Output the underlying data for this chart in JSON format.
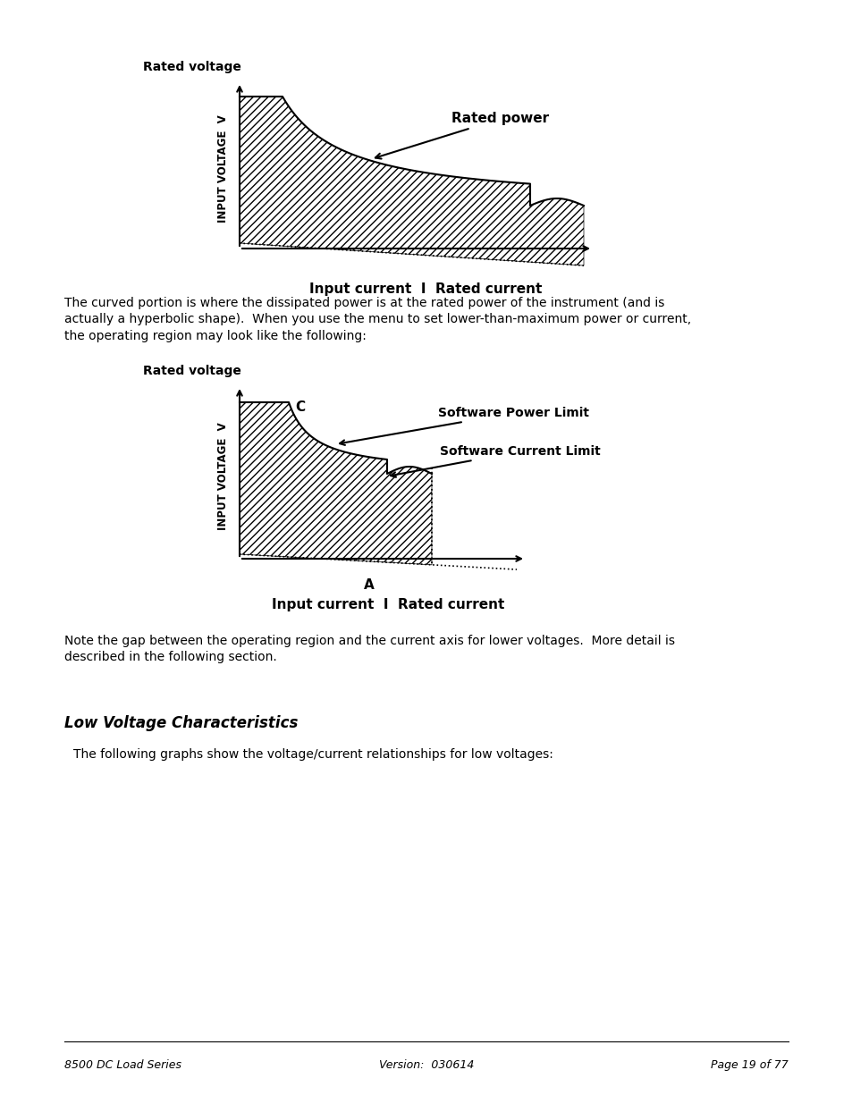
{
  "page_bg": "#ffffff",
  "footer_left": "8500 DC Load Series",
  "footer_center": "Version:  030614",
  "footer_right": "Page 19 of 77",
  "body_text_1": "The curved portion is where the dissipated power is at the rated power of the instrument (and is\nactually a hyperbolic shape).  When you use the menu to set lower-than-maximum power or current,\nthe operating region may look like the following:",
  "body_text_2": "Note the gap between the operating region and the current axis for lower voltages.  More detail is\ndescribed in the following section.",
  "section_title": "Low Voltage Characteristics",
  "body_text_3": "The following graphs show the voltage/current relationships for low voltages:",
  "chart1_title": "Rated voltage",
  "chart1_ylabel": "INPUT VOLTAGE  V",
  "chart1_xlabel": "Input current  I  Rated current",
  "chart1_annotation": "Rated power",
  "chart2_title": "Rated voltage",
  "chart2_ylabel": "INPUT VOLTAGE  V",
  "chart2_xlabel": "Input current  I  Rated current",
  "chart2_point_C": "C",
  "chart2_point_A": "A",
  "chart2_annot1": "Software Power Limit",
  "chart2_annot2": "Software Current Limit"
}
